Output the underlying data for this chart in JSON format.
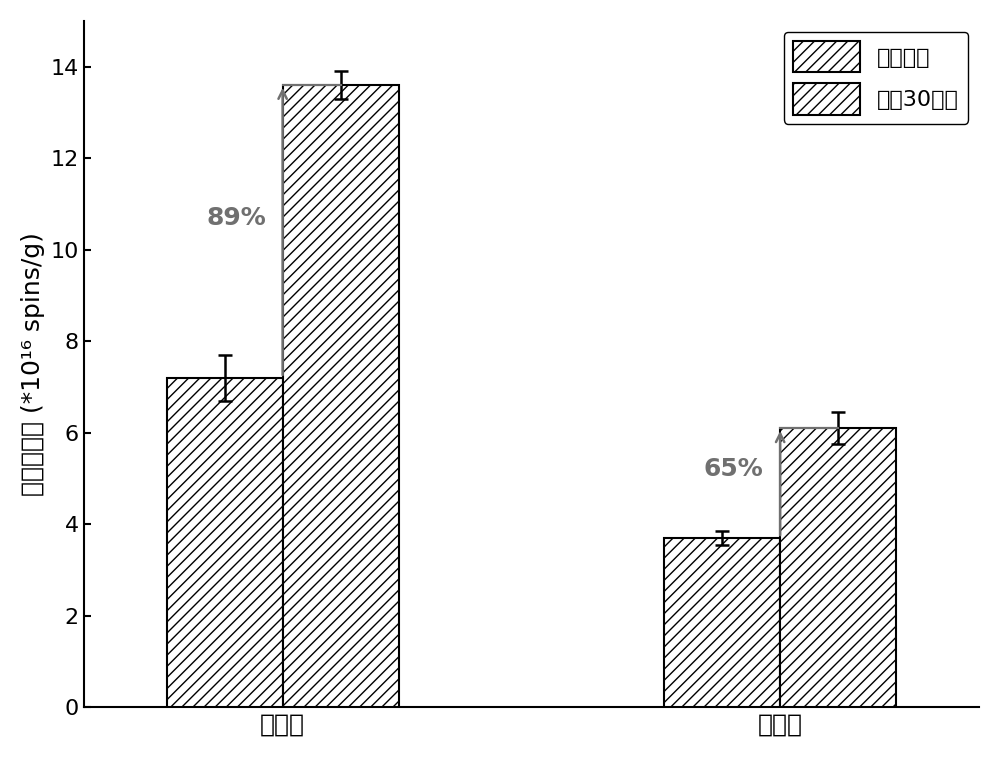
{
  "categories": [
    "比较例",
    "实施例"
  ],
  "fresh_values": [
    7.2,
    3.7
  ],
  "aged_values": [
    13.6,
    6.1
  ],
  "fresh_errors": [
    0.5,
    0.15
  ],
  "aged_errors": [
    0.3,
    0.35
  ],
  "annotations": [
    "89%",
    "65%"
  ],
  "ylabel": "自由基浓度 (*10¹⁶ spins/g)",
  "ylim": [
    0,
    15
  ],
  "yticks": [
    0,
    2,
    4,
    6,
    8,
    10,
    12,
    14
  ],
  "legend_labels": [
    "新鲜焦油",
    "放罒30天后"
  ],
  "bar_color": "white",
  "bar_edgecolor": "black",
  "bar_width": 0.35,
  "group_positions": [
    1.0,
    2.5
  ],
  "arrow_color": "#707070",
  "annotation_color": "#707070",
  "annotation_fontsize": 18,
  "figsize": [
    10.0,
    7.57
  ],
  "dpi": 100
}
